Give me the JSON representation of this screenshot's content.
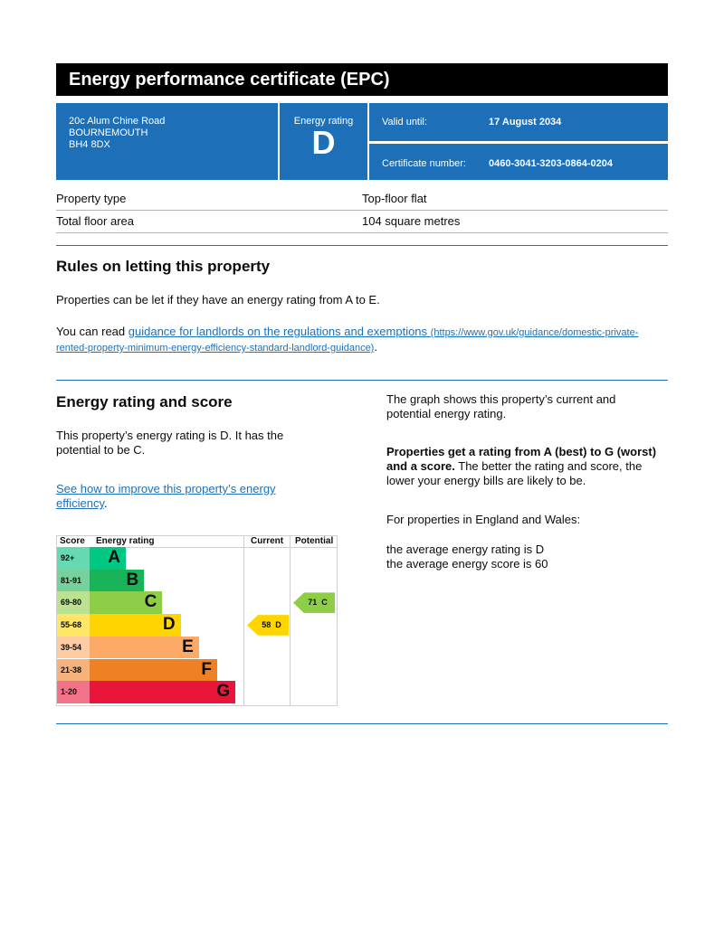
{
  "title": "Energy performance certificate (EPC)",
  "address": [
    "20c Alum Chine Road",
    "BOURNEMOUTH",
    "BH4 8DX"
  ],
  "energy_rating_label": "Energy rating",
  "energy_rating": "D",
  "valid_until_label": "Valid until:",
  "valid_until": "17 August 2034",
  "certificate_number_label": "Certificate number:",
  "certificate_number": "0460-3041-3203-0864-0204",
  "property": [
    {
      "label": "Property type",
      "value": "Top-floor flat"
    },
    {
      "label": "Total floor area",
      "value": "104 square metres"
    }
  ],
  "rules": {
    "heading": "Rules on letting this property",
    "p1": "Properties can be let if they have an energy rating from A to E.",
    "p2_prefix": "You can read ",
    "link_text": "guidance for landlords on the regulations and exemptions",
    "link_url_text": "(https://www.gov.uk/guidance/domestic-private-rented-property-minimum-energy-efficiency-standard-landlord-guidance)",
    "p2_suffix": "."
  },
  "score": {
    "heading": "Energy rating and score",
    "p1": "This property’s energy rating is D. It has the potential to be C.",
    "link_text": "See how to improve this property’s energy efficiency",
    "link_suffix": ".",
    "r1": "The graph shows this property’s current and potential energy rating.",
    "r2_bold": "Properties get a rating from A (best) to G (worst) and a score.",
    "r2_rest": " The better the rating and score, the lower your energy bills are likely to be.",
    "r3": "For properties in England and Wales:",
    "r4": "the average energy rating is D",
    "r5": "the average energy score is 60"
  },
  "chart_data": {
    "type": "bar",
    "headers": [
      "Score",
      "Energy rating",
      "Current",
      "Potential"
    ],
    "bands": [
      {
        "score": "92+",
        "letter": "A",
        "color": "#00c781",
        "light": "#66d9b3"
      },
      {
        "score": "81-91",
        "letter": "B",
        "color": "#19b459",
        "light": "#75d29b"
      },
      {
        "score": "69-80",
        "letter": "C",
        "color": "#8dce46",
        "light": "#bbe290"
      },
      {
        "score": "55-68",
        "letter": "D",
        "color": "#ffd500",
        "light": "#ffe666"
      },
      {
        "score": "39-54",
        "letter": "E",
        "color": "#fcaa65",
        "light": "#fdcca3"
      },
      {
        "score": "21-38",
        "letter": "F",
        "color": "#ef8023",
        "light": "#f5b37b"
      },
      {
        "score": "1-20",
        "letter": "G",
        "color": "#e9153b",
        "light": "#f27389"
      }
    ],
    "current": {
      "score": 58,
      "letter": "D",
      "label": "58  D",
      "color": "#ffd500"
    },
    "potential": {
      "score": 71,
      "letter": "C",
      "label": "71  C",
      "color": "#8dce46"
    }
  }
}
